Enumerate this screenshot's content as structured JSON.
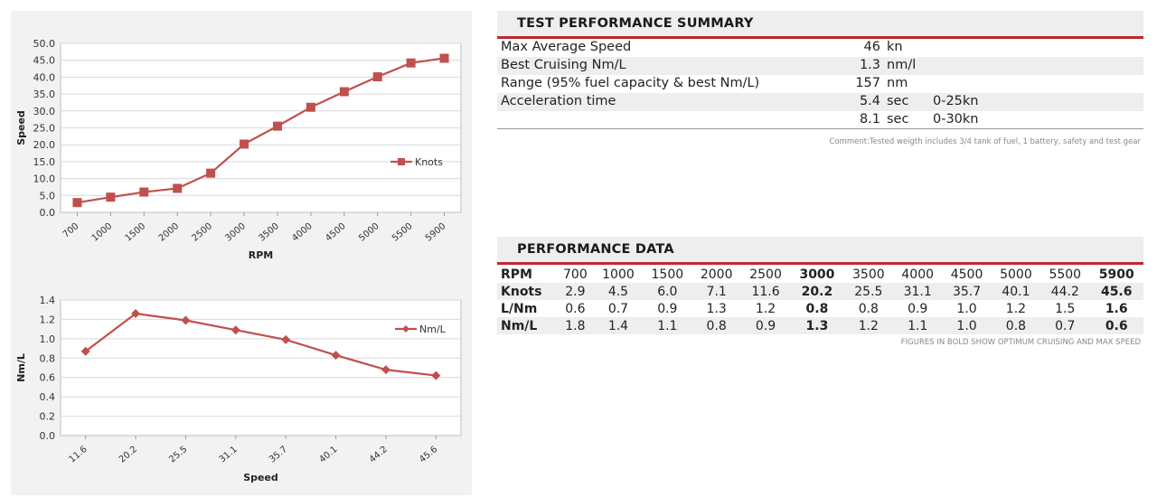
{
  "colors": {
    "accent": "#c0272d",
    "series": "#c0504d",
    "grid": "#d9d9d9"
  },
  "chart_data": [
    {
      "type": "line",
      "xlabel": "RPM",
      "ylabel": "Speed",
      "categories": [
        "700",
        "1000",
        "1500",
        "2000",
        "2500",
        "3000",
        "3500",
        "4000",
        "4500",
        "5000",
        "5500",
        "5900"
      ],
      "series": [
        {
          "name": "Knots",
          "values": [
            2.9,
            4.5,
            6.0,
            7.1,
            11.6,
            20.2,
            25.5,
            31.1,
            35.7,
            40.1,
            44.2,
            45.6
          ],
          "marker": "square"
        }
      ],
      "ylim": [
        0,
        50
      ],
      "yticks": [
        "0.0",
        "5.0",
        "10.0",
        "15.0",
        "20.0",
        "25.0",
        "30.0",
        "35.0",
        "40.0",
        "45.0",
        "50.0"
      ],
      "grid": true,
      "legend": "right"
    },
    {
      "type": "line",
      "xlabel": "Speed",
      "ylabel": "Nm/L",
      "categories": [
        "11.6",
        "20.2",
        "25.5",
        "31.1",
        "35.7",
        "40.1",
        "44.2",
        "45.6"
      ],
      "series": [
        {
          "name": "Nm/L",
          "values": [
            0.87,
            1.26,
            1.19,
            1.09,
            0.99,
            0.83,
            0.68,
            0.62
          ],
          "marker": "diamond"
        }
      ],
      "ylim": [
        0,
        1.4
      ],
      "yticks": [
        "0.0",
        "0.2",
        "0.4",
        "0.6",
        "0.8",
        "1.0",
        "1.2",
        "1.4"
      ],
      "grid": true,
      "legend": "right"
    }
  ],
  "summary": {
    "title": "TEST PERFORMANCE SUMMARY",
    "rows": [
      {
        "label": "Max Average Speed",
        "value": "46",
        "unit": "kn",
        "note": ""
      },
      {
        "label": "Best Cruising Nm/L",
        "value": "1.3",
        "unit": "nm/l",
        "note": ""
      },
      {
        "label": "Range (95% fuel capacity & best Nm/L)",
        "value": "157",
        "unit": "nm",
        "note": ""
      },
      {
        "label": "Acceleration time",
        "value": "5.4",
        "unit": "sec",
        "note": "0-25kn"
      },
      {
        "label": "",
        "value": "8.1",
        "unit": "sec",
        "note": "0-30kn"
      }
    ],
    "comment": "Comment:Tested weigth includes 3/4 tank of fuel, 1 battery, safety and test gear"
  },
  "performance": {
    "title": "PERFORMANCE DATA",
    "rows": [
      {
        "header": "RPM",
        "cells": [
          "700",
          "1000",
          "1500",
          "2000",
          "2500",
          "3000",
          "3500",
          "4000",
          "4500",
          "5000",
          "5500",
          "5900"
        ]
      },
      {
        "header": "Knots",
        "cells": [
          "2.9",
          "4.5",
          "6.0",
          "7.1",
          "11.6",
          "20.2",
          "25.5",
          "31.1",
          "35.7",
          "40.1",
          "44.2",
          "45.6"
        ]
      },
      {
        "header": "L/Nm",
        "cells": [
          "0.6",
          "0.7",
          "0.9",
          "1.3",
          "1.2",
          "0.8",
          "0.8",
          "0.9",
          "1.0",
          "1.2",
          "1.5",
          "1.6"
        ]
      },
      {
        "header": "Nm/L",
        "cells": [
          "1.8",
          "1.4",
          "1.1",
          "0.8",
          "0.9",
          "1.3",
          "1.2",
          "1.1",
          "1.0",
          "0.8",
          "0.7",
          "0.6"
        ]
      }
    ],
    "bold_columns": [
      5,
      11
    ],
    "footnote": "FIGURES IN BOLD SHOW OPTIMUM CRUISING AND MAX SPEED"
  }
}
